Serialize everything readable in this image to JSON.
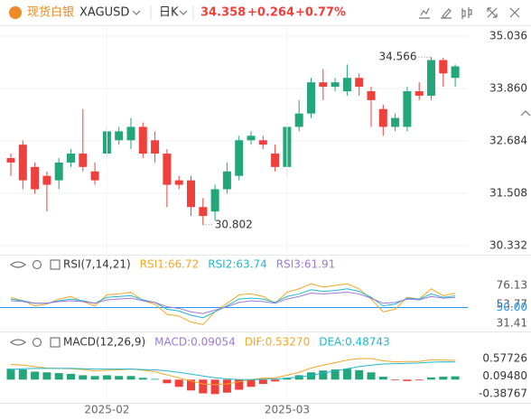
{
  "header": {
    "name": "现货白银",
    "symbol": "XAGUSD",
    "period": "日K",
    "price": "34.358",
    "change": "+0.264",
    "change_pct": "+0.77%"
  },
  "chart_data": [
    {
      "type": "candlestick",
      "up_color": "#22a67a",
      "down_color": "#f0403c",
      "grid": true,
      "categories": [
        null,
        null,
        null,
        null,
        null,
        null,
        null,
        null,
        "2025-02",
        null,
        null,
        null,
        null,
        null,
        null,
        null,
        null,
        null,
        null,
        null,
        null,
        null,
        null,
        "2025-03",
        null,
        null,
        null,
        null,
        null,
        null,
        null,
        null,
        null,
        null,
        null,
        null,
        null,
        null
      ],
      "open": [
        32.3,
        32.6,
        32.1,
        31.9,
        31.8,
        32.2,
        32.4,
        32.0,
        32.4,
        32.7,
        32.7,
        33.0,
        32.7,
        32.4,
        31.8,
        31.8,
        31.2,
        31.1,
        31.6,
        31.9,
        32.7,
        32.7,
        32.4,
        32.1,
        33.0,
        33.3,
        34.0,
        33.9,
        33.8,
        34.1,
        33.8,
        33.4,
        33.0,
        33.0,
        33.8,
        33.7,
        34.5,
        34.1
      ],
      "high": [
        32.4,
        32.7,
        32.2,
        32.0,
        32.3,
        32.5,
        33.4,
        32.2,
        33.0,
        33.0,
        33.2,
        33.1,
        32.9,
        32.5,
        31.9,
        31.9,
        31.4,
        31.7,
        32.2,
        32.8,
        32.9,
        32.8,
        32.6,
        33.1,
        33.6,
        34.1,
        34.3,
        34.1,
        34.4,
        34.2,
        33.9,
        33.5,
        33.3,
        33.9,
        34.0,
        34.566,
        34.55,
        34.4
      ],
      "low": [
        31.9,
        31.6,
        31.5,
        31.1,
        31.6,
        32.1,
        32.0,
        31.7,
        32.3,
        32.6,
        32.5,
        32.3,
        32.2,
        31.2,
        31.6,
        31.0,
        30.802,
        30.9,
        31.5,
        31.8,
        32.6,
        32.5,
        32.0,
        31.9,
        32.9,
        33.2,
        33.6,
        33.8,
        33.7,
        33.7,
        33.0,
        32.8,
        32.9,
        32.9,
        33.6,
        33.6,
        33.9,
        33.9
      ],
      "close": [
        32.2,
        31.8,
        31.6,
        31.7,
        32.2,
        32.4,
        32.1,
        31.8,
        32.9,
        32.9,
        33.0,
        32.4,
        32.4,
        31.7,
        31.7,
        31.2,
        31.0,
        31.6,
        32.0,
        32.7,
        32.8,
        32.6,
        32.1,
        33.0,
        33.3,
        34.0,
        33.9,
        34.0,
        34.1,
        33.9,
        33.6,
        33.0,
        33.2,
        33.8,
        33.7,
        34.5,
        34.2,
        34.358
      ],
      "ylim": [
        30.13,
        35.24
      ],
      "yticks": [
        35.036,
        {
          "value": 33.86,
          "label": "33.860"
        },
        32.684,
        31.508,
        30.332
      ]
    },
    {
      "type": "line",
      "title": "RSI(7,14,21)",
      "ylim": [
        24,
        93
      ],
      "yticks": [
        76.13,
        53.77,
        {
          "value": 50,
          "label": "50.00",
          "color": "#2196f3"
        },
        31.41
      ],
      "series": [
        {
          "name": "RSI1:66.72",
          "color": "#f5a623",
          "values": [
            62,
            58,
            52,
            54,
            60,
            63,
            57,
            52,
            65,
            66,
            68,
            58,
            54,
            42,
            40,
            33,
            30,
            45,
            55,
            65,
            66,
            63,
            55,
            68,
            72,
            78,
            74,
            76,
            78,
            72,
            60,
            45,
            48,
            62,
            60,
            72,
            64,
            66.72
          ]
        },
        {
          "name": "RSI2:63.74",
          "color": "#1fb8cf",
          "values": [
            60,
            58,
            55,
            55,
            58,
            60,
            58,
            55,
            62,
            63,
            64,
            59,
            56,
            48,
            46,
            41,
            38,
            45,
            52,
            60,
            61,
            60,
            56,
            63,
            66,
            71,
            69,
            70,
            72,
            69,
            62,
            52,
            54,
            61,
            60,
            66,
            62,
            63.74
          ]
        },
        {
          "name": "RSI3:61.91",
          "color": "#9c7ad8",
          "values": [
            58,
            57,
            55,
            55,
            57,
            58,
            57,
            55,
            59,
            60,
            61,
            58,
            56,
            51,
            49,
            45,
            43,
            47,
            51,
            56,
            58,
            57,
            55,
            60,
            63,
            67,
            66,
            67,
            68,
            66,
            61,
            55,
            56,
            60,
            59,
            63,
            61,
            61.91
          ]
        }
      ]
    },
    {
      "type": "combo",
      "title": "MACD(12,26,9)",
      "ylim": [
        -0.642,
        0.806
      ],
      "yticks": [
        0.57726,
        {
          "value": 0.0948,
          "label": "0.09480"
        },
        -0.38767
      ],
      "series": [
        {
          "name": "MACD:0.09054",
          "type": "bar",
          "color": "#9c7ad8",
          "up_color": "#22a67a",
          "down_color": "#f0403c",
          "values": [
            0.3,
            0.28,
            0.22,
            0.2,
            0.18,
            0.16,
            0.12,
            0.1,
            0.12,
            0.1,
            0.1,
            0.05,
            0.02,
            -0.1,
            -0.2,
            -0.3,
            -0.38,
            -0.4,
            -0.36,
            -0.28,
            -0.2,
            -0.12,
            -0.05,
            0.05,
            0.12,
            0.2,
            0.25,
            0.28,
            0.3,
            0.26,
            0.2,
            0.08,
            -0.02,
            -0.04,
            -0.02,
            0.06,
            0.08,
            0.09054
          ]
        },
        {
          "name": "DIF:0.53270",
          "type": "line",
          "color": "#f5a623",
          "values": [
            0.42,
            0.4,
            0.36,
            0.32,
            0.31,
            0.3,
            0.28,
            0.24,
            0.26,
            0.27,
            0.29,
            0.26,
            0.22,
            0.13,
            0.05,
            -0.04,
            -0.12,
            -0.14,
            -0.12,
            -0.06,
            0.0,
            0.04,
            0.05,
            0.12,
            0.2,
            0.32,
            0.4,
            0.47,
            0.54,
            0.58,
            0.58,
            0.52,
            0.49,
            0.5,
            0.5,
            0.55,
            0.54,
            0.5327
          ]
        },
        {
          "name": "DEA:0.48743",
          "type": "line",
          "color": "#1fb8cf",
          "values": [
            0.28,
            0.3,
            0.31,
            0.31,
            0.31,
            0.31,
            0.3,
            0.29,
            0.29,
            0.29,
            0.29,
            0.28,
            0.27,
            0.24,
            0.2,
            0.15,
            0.1,
            0.05,
            0.02,
            0.0,
            0.0,
            0.01,
            0.02,
            0.04,
            0.07,
            0.12,
            0.18,
            0.24,
            0.3,
            0.36,
            0.4,
            0.43,
            0.44,
            0.45,
            0.46,
            0.48,
            0.49,
            0.48743
          ]
        }
      ]
    }
  ]
}
